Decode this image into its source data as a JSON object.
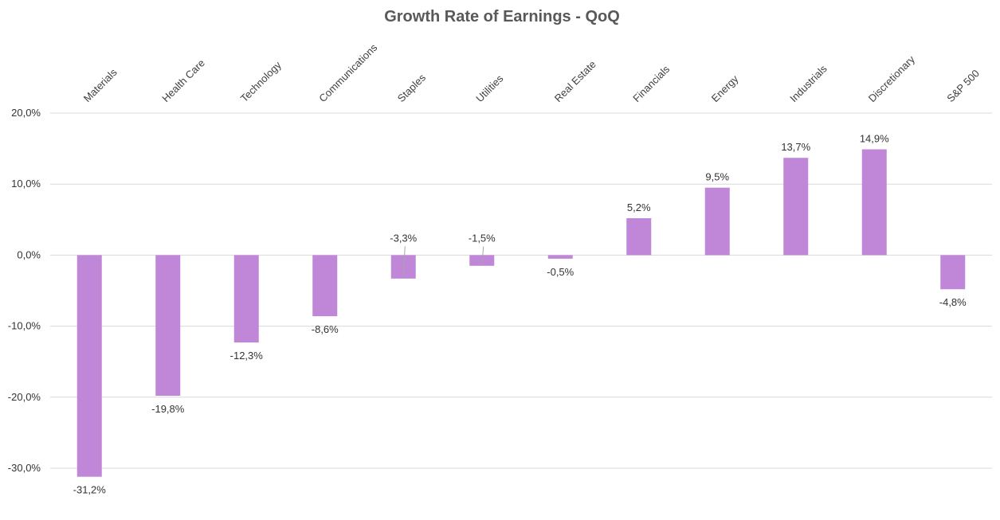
{
  "chart_data": {
    "type": "bar",
    "title": "Growth Rate of Earnings - QoQ",
    "xlabel": "",
    "ylabel": "",
    "categories": [
      "Materials",
      "Health Care",
      "Technology",
      "Communications",
      "Staples",
      "Utilities",
      "Real Estate",
      "Financials",
      "Energy",
      "Industrials",
      "Discretionary",
      "S&P 500"
    ],
    "values": [
      -31.2,
      -19.8,
      -12.3,
      -8.6,
      -3.3,
      -1.5,
      -0.5,
      5.2,
      9.5,
      13.7,
      14.9,
      -4.8
    ],
    "data_labels": [
      "-31,2%",
      "-19,8%",
      "-12,3%",
      "-8,6%",
      "-3,3%",
      "-1,5%",
      "-0,5%",
      "5,2%",
      "9,5%",
      "13,7%",
      "14,9%",
      "-4,8%"
    ],
    "ylim": [
      -30,
      20
    ],
    "yticks": [
      20,
      10,
      0,
      -10,
      -20,
      -30
    ],
    "ytick_labels": [
      "20,0%",
      "10,0%",
      "0,0%",
      "-10,0%",
      "-20,0%",
      "-30,0%"
    ],
    "category_axis_position": "top",
    "grid": true,
    "legend": "none",
    "bar_color": "#c086d8",
    "grid_color": "#d9d9d9",
    "title_color": "#595959"
  }
}
